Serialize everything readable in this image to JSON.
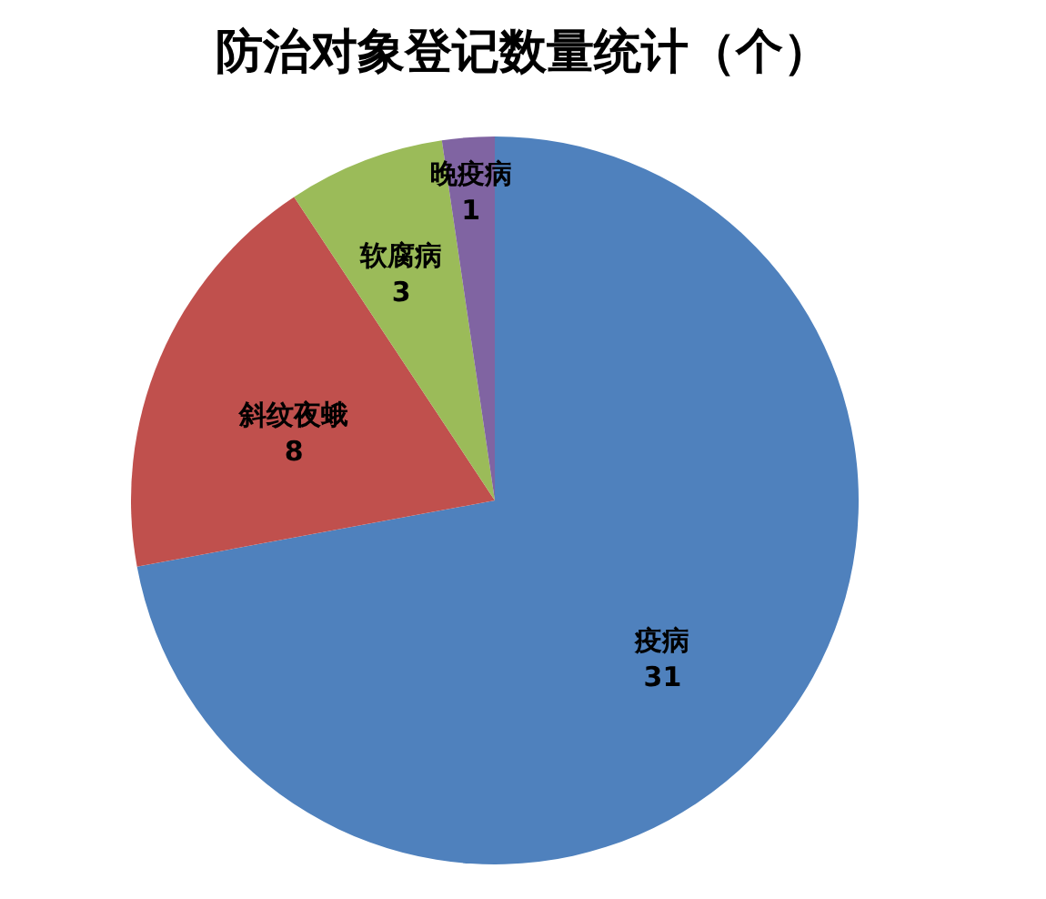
{
  "chart_data": {
    "type": "pie",
    "title": "防治对象登记数量统计（个）",
    "categories": [
      "疫病",
      "斜纹夜蛾",
      "软腐病",
      "晚疫病"
    ],
    "values": [
      31,
      8,
      3,
      1
    ],
    "colors": [
      "#4f81bd",
      "#c0504d",
      "#9bbb59",
      "#8064a2"
    ],
    "data_labels": true,
    "legend": false
  }
}
